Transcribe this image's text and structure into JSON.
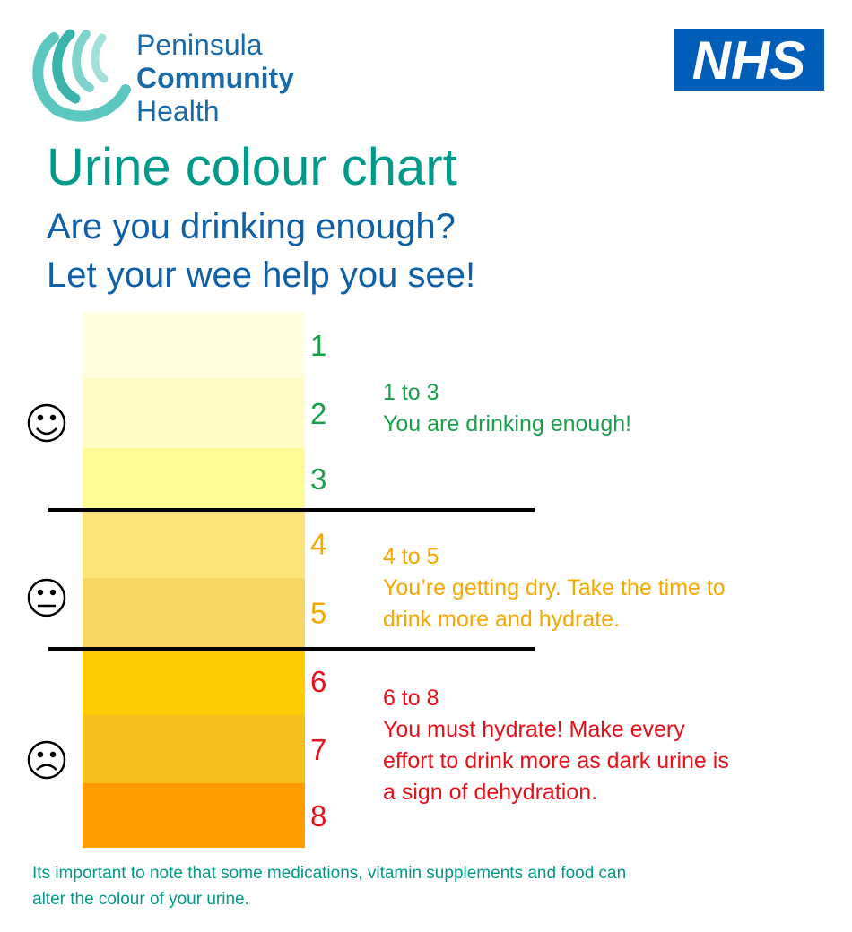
{
  "logo": {
    "lines": [
      "Peninsula",
      "Community",
      "Health"
    ]
  },
  "nhs_logo": "NHS",
  "title": "Urine colour chart",
  "subtitle_lines": [
    "Are you drinking enough?",
    "Let your wee help you see!"
  ],
  "levels": [
    {
      "number": "1",
      "color": "#fffee0",
      "text_color": "#1aa04a"
    },
    {
      "number": "2",
      "color": "#fffcc8",
      "text_color": "#1aa04a"
    },
    {
      "number": "3",
      "color": "#fffc98",
      "text_color": "#1aa04a"
    },
    {
      "number": "4",
      "color": "#fbe57a",
      "text_color": "#f5a800"
    },
    {
      "number": "5",
      "color": "#f8d765",
      "text_color": "#f5a800"
    },
    {
      "number": "6",
      "color": "#ffcb05",
      "text_color": "#e8101a"
    },
    {
      "number": "7",
      "color": "#f6bf1e",
      "text_color": "#e8101a"
    },
    {
      "number": "8",
      "color": "#ff9d00",
      "text_color": "#e8101a"
    }
  ],
  "groups": [
    {
      "range": "1 to 3",
      "lines": [
        "You are drinking enough!"
      ],
      "color": "#1aa04a"
    },
    {
      "range": "4 to 5",
      "lines": [
        "You’re getting dry. Take the time to",
        "drink more and hydrate."
      ],
      "color": "#f5a800"
    },
    {
      "range": "6 to 8",
      "lines": [
        "You must hydrate! Make every",
        "effort to drink more as dark urine is",
        "a sign of dehydration."
      ],
      "color": "#e8101a"
    }
  ],
  "footnote_lines": [
    "Its important to note that some medications, vitamin supplements and food can",
    "alter the colour of your urine."
  ]
}
